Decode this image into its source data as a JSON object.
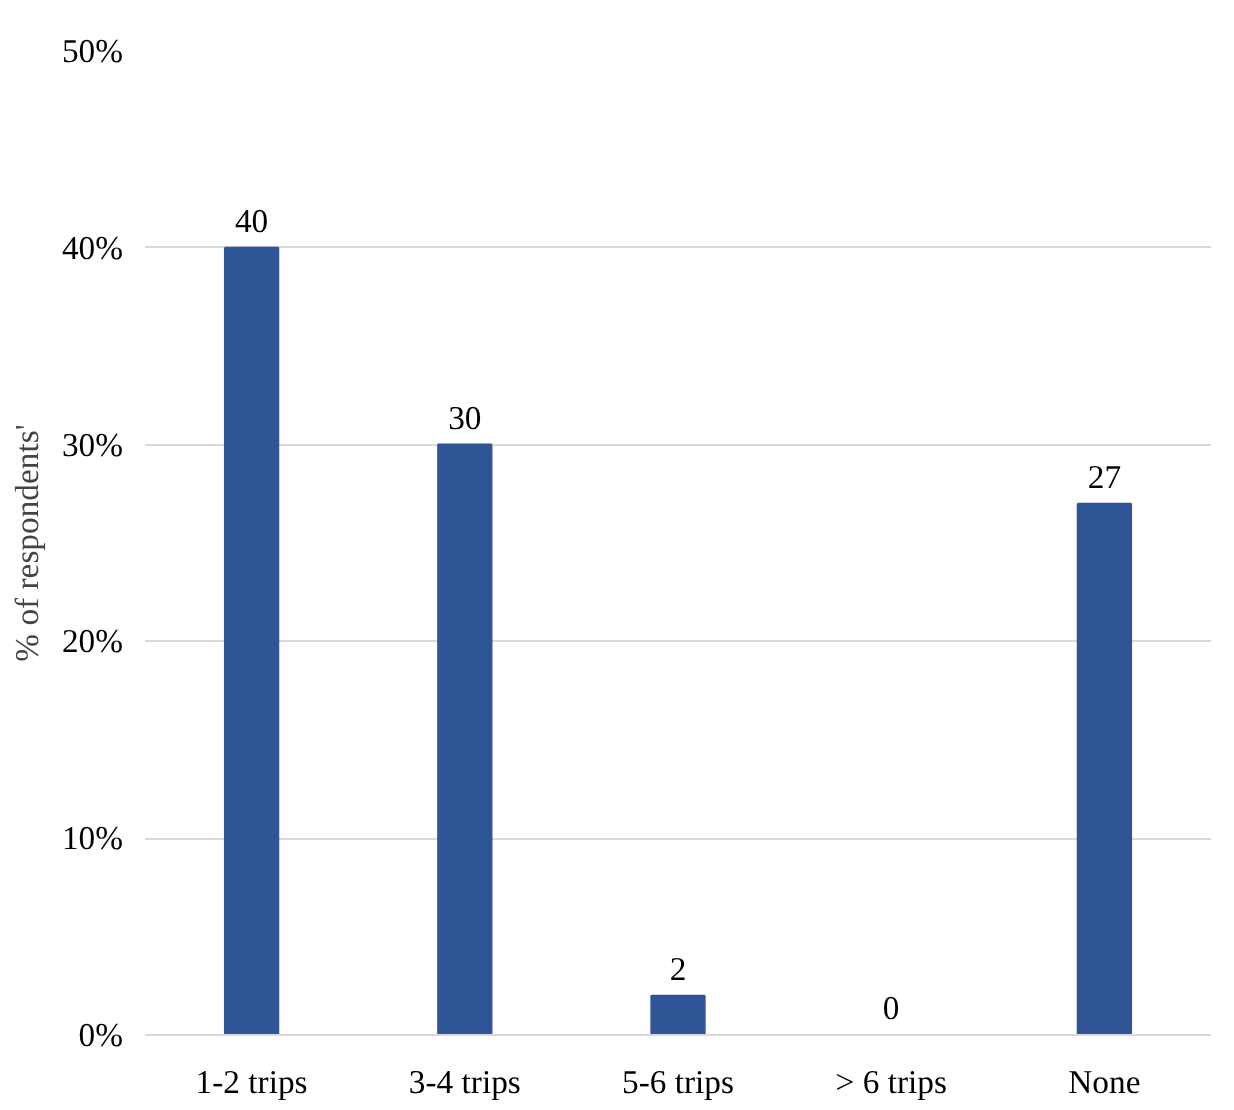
{
  "chart_data": {
    "type": "bar",
    "ylabel": "% of respondents'",
    "categories": [
      "1-2 trips",
      "3-4 trips",
      "5-6 trips",
      "> 6 trips",
      "None"
    ],
    "values": [
      40,
      30,
      2,
      0,
      27
    ],
    "color": "#2f5597",
    "ylim": [
      0,
      50
    ],
    "yticks": [
      {
        "value": 0,
        "label": "0%"
      },
      {
        "value": 10,
        "label": "10%"
      },
      {
        "value": 20,
        "label": "20%"
      },
      {
        "value": 30,
        "label": "30%"
      },
      {
        "value": 40,
        "label": "40%"
      },
      {
        "value": 50,
        "label": "50%"
      }
    ],
    "grid": "y",
    "data_labels": true
  }
}
